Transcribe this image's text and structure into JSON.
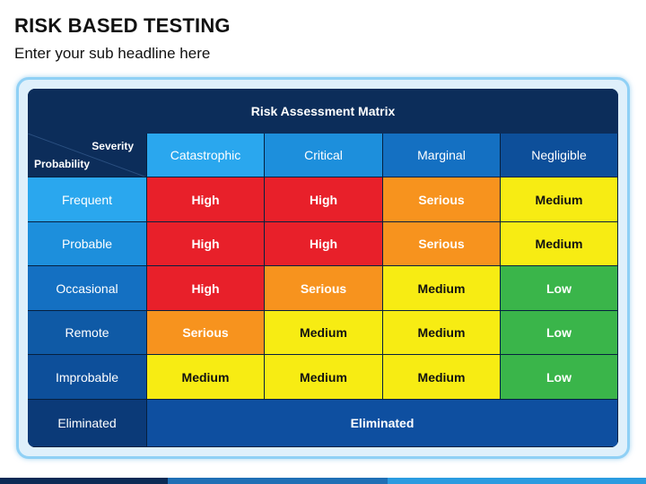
{
  "slide": {
    "title": "RISK BASED TESTING",
    "subtitle": "Enter your sub headline here"
  },
  "matrix": {
    "title": "Risk Assessment Matrix",
    "corner": {
      "severity_label": "Severity",
      "probability_label": "Probability"
    },
    "severity_columns": [
      {
        "label": "Catastrophic",
        "color": "#2aa7ee"
      },
      {
        "label": "Critical",
        "color": "#1d8fdc"
      },
      {
        "label": "Marginal",
        "color": "#1470c2"
      },
      {
        "label": "Negligible",
        "color": "#0d4f9a"
      }
    ],
    "probability_rows": [
      {
        "label": "Frequent",
        "color": "#2aa7ee"
      },
      {
        "label": "Probable",
        "color": "#1d8fdc"
      },
      {
        "label": "Occasional",
        "color": "#1470c2"
      },
      {
        "label": "Remote",
        "color": "#0f5aa6"
      },
      {
        "label": "Improbable",
        "color": "#0d4f9a"
      },
      {
        "label": "Eliminated",
        "color": "#0b3a78"
      }
    ],
    "ratings": [
      [
        "High",
        "High",
        "Serious",
        "Medium"
      ],
      [
        "High",
        "High",
        "Serious",
        "Medium"
      ],
      [
        "High",
        "Serious",
        "Medium",
        "Low"
      ],
      [
        "Serious",
        "Medium",
        "Medium",
        "Low"
      ],
      [
        "Medium",
        "Medium",
        "Medium",
        "Low"
      ]
    ],
    "eliminated_label": "Eliminated",
    "eliminated_color": "#0e4fa0",
    "rating_colors": {
      "High": "#e8202a",
      "Serious": "#f7931e",
      "Medium": "#f7ec13",
      "Low": "#3ab54a"
    }
  }
}
